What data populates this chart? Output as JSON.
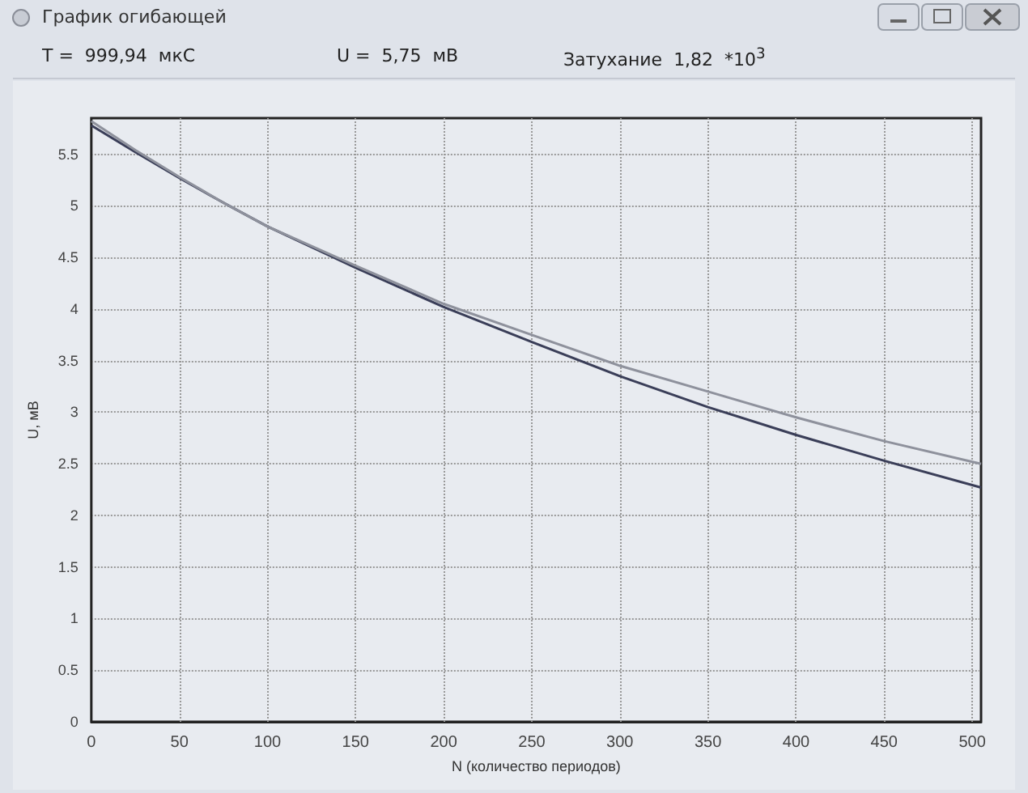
{
  "chart_data": {
    "type": "line",
    "title": "График огибающей",
    "xlabel": "N (количество периодов)",
    "ylabel": "U, мВ",
    "annotations": [
      "T =  999,94  мкС",
      "U =  5,75  мВ",
      "Затухание  1,82  *10$^{3}$"
    ],
    "x": [
      0,
      25,
      50,
      75,
      100,
      150,
      200,
      250,
      300,
      350,
      400,
      450,
      505
    ],
    "series": [
      {
        "color": "#3a3e58",
        "values": [
          5.78,
          5.52,
          5.27,
          5.03,
          4.8,
          4.4,
          4.02,
          3.68,
          3.35,
          3.05,
          2.78,
          2.53,
          2.27
        ]
      },
      {
        "color": "#8e919c",
        "values": [
          5.82,
          5.54,
          5.28,
          5.03,
          4.8,
          4.42,
          4.05,
          3.75,
          3.45,
          3.2,
          2.95,
          2.72,
          2.5
        ]
      }
    ],
    "xlim": [
      0,
      505
    ],
    "xticks": [
      0,
      50,
      100,
      150,
      200,
      250,
      300,
      350,
      400,
      450,
      500
    ],
    "ylim": [
      0,
      5.85
    ],
    "yticks": [
      0,
      0.5,
      1,
      1.5,
      2,
      2.5,
      3,
      3.5,
      4,
      4.5,
      5,
      5.5
    ],
    "grid": true,
    "marker": "none",
    "line_style": "solid"
  }
}
